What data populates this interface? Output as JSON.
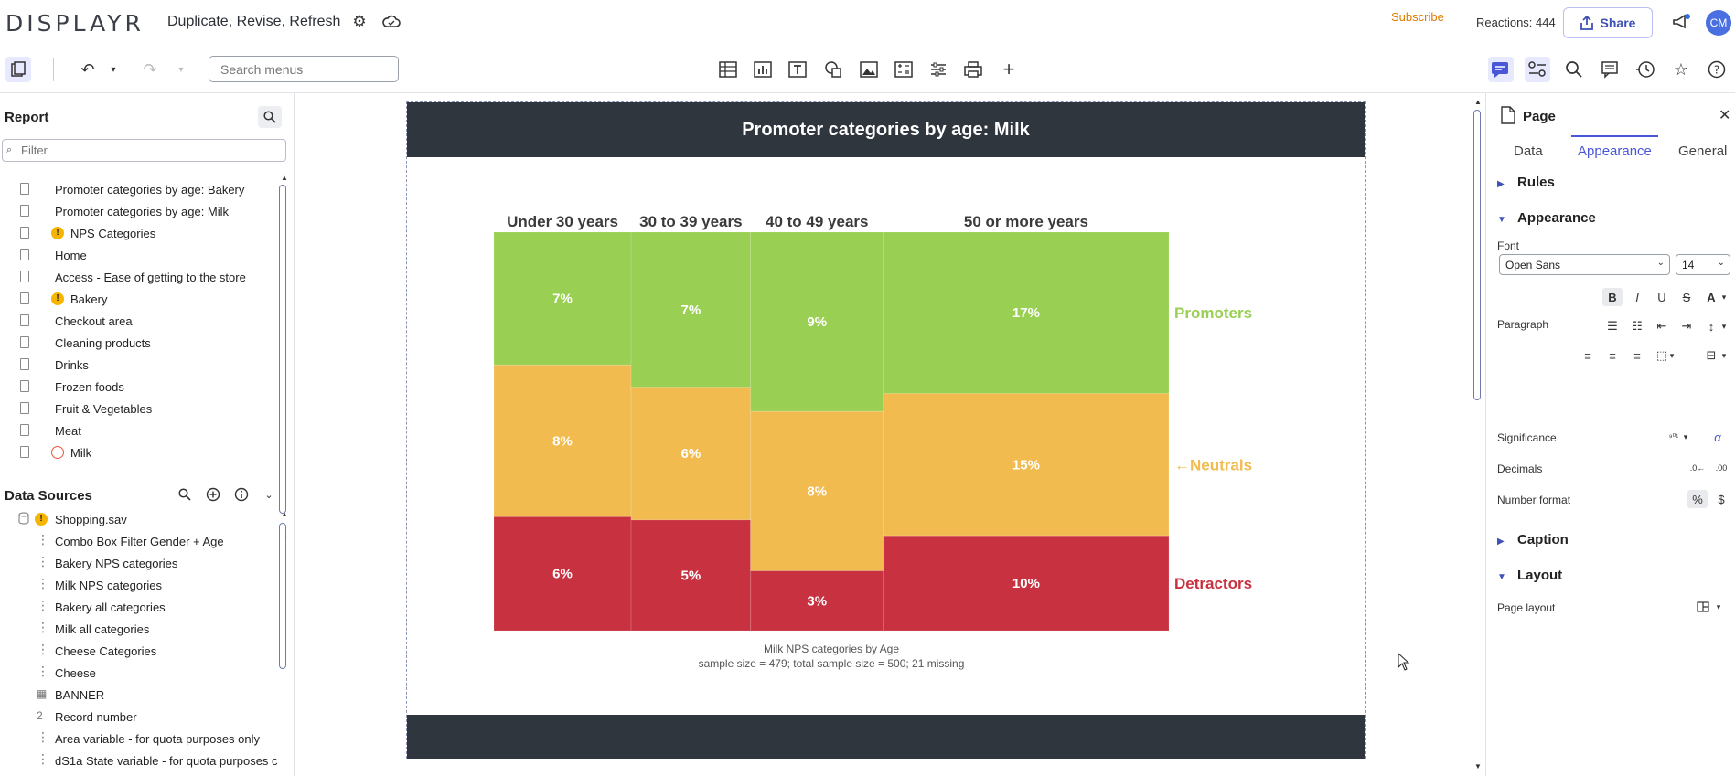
{
  "app": {
    "logo": "DISPLAYR",
    "doc_title": "Duplicate, Revise, Refresh",
    "subscribe": "Subscribe",
    "reactions": "Reactions: 444",
    "share_label": "Share",
    "avatar_initials": "CM"
  },
  "toolbar": {
    "search_placeholder": "Search menus"
  },
  "report": {
    "heading": "Report",
    "filter_placeholder": "Filter",
    "items": [
      {
        "label": "Promoter categories by age: Bakery",
        "status": "none"
      },
      {
        "label": "Promoter categories by age: Milk",
        "status": "none"
      },
      {
        "label": "NPS Categories",
        "status": "warning"
      },
      {
        "label": "Home",
        "status": "none"
      },
      {
        "label": "Access - Ease of getting to the store",
        "status": "none"
      },
      {
        "label": "Bakery",
        "status": "warning"
      },
      {
        "label": "Checkout area",
        "status": "none"
      },
      {
        "label": "Cleaning products",
        "status": "none"
      },
      {
        "label": "Drinks",
        "status": "none"
      },
      {
        "label": "Frozen foods",
        "status": "none"
      },
      {
        "label": "Fruit & Vegetables",
        "status": "none"
      },
      {
        "label": "Meat",
        "status": "none"
      },
      {
        "label": "Milk",
        "status": "pending"
      }
    ]
  },
  "data_sources": {
    "heading": "Data Sources",
    "file": "Shopping.sav",
    "items": [
      {
        "label": "Combo Box Filter Gender + Age",
        "icon": "categorical-icon"
      },
      {
        "label": "Bakery NPS categories",
        "icon": "categorical-icon"
      },
      {
        "label": "Milk NPS categories",
        "icon": "categorical-icon"
      },
      {
        "label": "Bakery all categories",
        "icon": "categorical-icon"
      },
      {
        "label": "Milk all categories",
        "icon": "categorical-icon"
      },
      {
        "label": "Cheese Categories",
        "icon": "categorical-icon"
      },
      {
        "label": "Cheese",
        "icon": "categorical-icon"
      },
      {
        "label": "BANNER",
        "icon": "grid-icon"
      },
      {
        "label": "Record number",
        "icon": "numeric-icon"
      },
      {
        "label": "Area variable - for quota purposes only",
        "icon": "categorical-icon"
      },
      {
        "label": "dS1a State variable - for quota purposes c",
        "icon": "categorical-icon"
      }
    ]
  },
  "page": {
    "title": "Promoter categories by age: Milk"
  },
  "chart_data": {
    "type": "mosaic",
    "title": "Promoter categories by age: Milk",
    "columns": [
      {
        "name": "Under 30 years",
        "width_share": 0.2033
      },
      {
        "name": "30 to 39 years",
        "width_share": 0.177
      },
      {
        "name": "40 to 49 years",
        "width_share": 0.1967
      },
      {
        "name": "50 or more years",
        "width_share": 0.423
      }
    ],
    "series": [
      {
        "name": "Promoters",
        "color": "#99cf52",
        "values": [
          7,
          7,
          9,
          17
        ],
        "labels": [
          "7%",
          "7%",
          "9%",
          "17%"
        ]
      },
      {
        "name": "Neutrals",
        "color": "#f2bb4f",
        "values": [
          8,
          6,
          8,
          15
        ],
        "labels": [
          "8%",
          "6%",
          "8%",
          "15%"
        ]
      },
      {
        "name": "Detractors",
        "color": "#c8313f",
        "values": [
          6,
          5,
          3,
          10
        ],
        "labels": [
          "6%",
          "5%",
          "3%",
          "10%"
        ]
      }
    ],
    "legend_labels": [
      "Promoters",
      "←Neutrals",
      "Detractors"
    ],
    "legend_colors": [
      "#99cf52",
      "#f2bb4f",
      "#c8313f"
    ],
    "caption_line1": "Milk NPS categories by Age",
    "caption_line2": "sample size = 479; total sample size = 500; 21 missing"
  },
  "right_panel": {
    "title": "Page",
    "tabs": [
      "Data",
      "Appearance",
      "General"
    ],
    "active_tab": "Appearance",
    "sections": {
      "rules": "Rules",
      "appearance": "Appearance",
      "caption": "Caption",
      "layout": "Layout"
    },
    "font_label": "Font",
    "font_value": "Open Sans",
    "font_size": "14",
    "paragraph_label": "Paragraph",
    "significance_label": "Significance",
    "decimals_label": "Decimals",
    "number_format_label": "Number format",
    "page_layout_label": "Page layout"
  }
}
